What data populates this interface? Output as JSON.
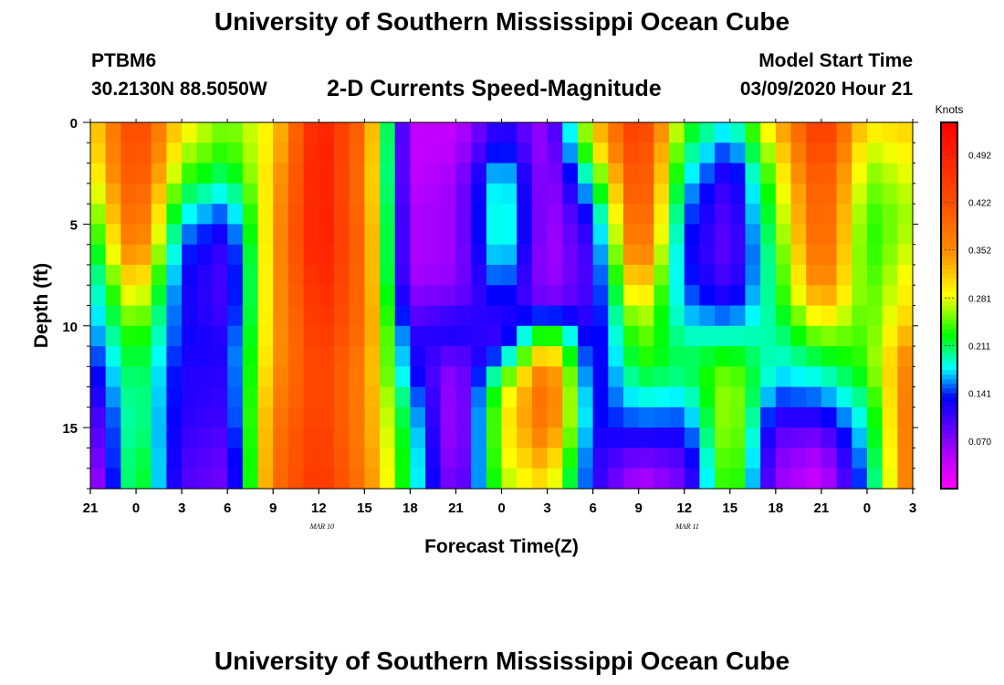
{
  "page": {
    "title": "University of Southern Mississippi Ocean Cube",
    "footer_title": "University of Southern Mississippi Ocean Cube",
    "station": "PTBM6",
    "coords": "30.2130N 88.5050W",
    "chart_title": "2-D Currents Speed-Magnitude",
    "model_start_label": "Model Start Time",
    "model_start_value": "03/09/2020 Hour 21"
  },
  "chart_data": {
    "type": "heatmap",
    "title": "2-D Currents Speed-Magnitude",
    "xlabel": "Forecast Time(Z)",
    "ylabel": "Depth (ft)",
    "x_range": [
      0,
      54
    ],
    "y_range": [
      0,
      18
    ],
    "x_unit_note": "hours since 03/09/2020 21Z",
    "x_ticks": [
      {
        "x": 0,
        "label": "21"
      },
      {
        "x": 3,
        "label": "0"
      },
      {
        "x": 6,
        "label": "3"
      },
      {
        "x": 9,
        "label": "6"
      },
      {
        "x": 12,
        "label": "9"
      },
      {
        "x": 15,
        "label": "12"
      },
      {
        "x": 18,
        "label": "15"
      },
      {
        "x": 21,
        "label": "18"
      },
      {
        "x": 24,
        "label": "21"
      },
      {
        "x": 27,
        "label": "0"
      },
      {
        "x": 30,
        "label": "3"
      },
      {
        "x": 33,
        "label": "6"
      },
      {
        "x": 36,
        "label": "9"
      },
      {
        "x": 39,
        "label": "12"
      },
      {
        "x": 42,
        "label": "15"
      },
      {
        "x": 45,
        "label": "18"
      },
      {
        "x": 48,
        "label": "21"
      },
      {
        "x": 51,
        "label": "0"
      },
      {
        "x": 54,
        "label": "3"
      }
    ],
    "date_labels": [
      {
        "x": 15.5,
        "label": "MAR  10"
      },
      {
        "x": 39.5,
        "label": "MAR  11"
      }
    ],
    "y_ticks": [
      {
        "y": 0,
        "label": "0"
      },
      {
        "y": 5,
        "label": "5"
      },
      {
        "y": 10,
        "label": "10"
      },
      {
        "y": 15,
        "label": "15"
      }
    ],
    "colorbar": {
      "title": "Knots",
      "range": [
        0.0,
        0.54
      ],
      "ticks": [
        {
          "v": 0.07,
          "label": "0.070"
        },
        {
          "v": 0.141,
          "label": "0.141"
        },
        {
          "v": 0.211,
          "label": "0.211"
        },
        {
          "v": 0.281,
          "label": "0.281"
        },
        {
          "v": 0.352,
          "label": "0.352"
        },
        {
          "v": 0.422,
          "label": "0.422"
        },
        {
          "v": 0.492,
          "label": "0.492"
        }
      ]
    },
    "depths": [
      0,
      1,
      2,
      3,
      4,
      5,
      6,
      7,
      8,
      9,
      10,
      11,
      12,
      13,
      14,
      15,
      16,
      17,
      18
    ],
    "time_hours": [
      0,
      3,
      6,
      9,
      12,
      15,
      18,
      21,
      24,
      27,
      30,
      33,
      36,
      39,
      42,
      45,
      48,
      51,
      54
    ],
    "speed_knots": [
      [
        0.3,
        0.45,
        0.3,
        0.25,
        0.3,
        0.5,
        0.38,
        0.04,
        0.04,
        0.12,
        0.06,
        0.3,
        0.47,
        0.24,
        0.18,
        0.32,
        0.47,
        0.3,
        0.32
      ],
      [
        0.29,
        0.44,
        0.28,
        0.24,
        0.3,
        0.51,
        0.38,
        0.04,
        0.04,
        0.14,
        0.05,
        0.3,
        0.46,
        0.22,
        0.15,
        0.3,
        0.46,
        0.28,
        0.3
      ],
      [
        0.28,
        0.44,
        0.26,
        0.22,
        0.31,
        0.51,
        0.37,
        0.04,
        0.05,
        0.17,
        0.05,
        0.24,
        0.45,
        0.2,
        0.12,
        0.28,
        0.44,
        0.26,
        0.29
      ],
      [
        0.26,
        0.43,
        0.23,
        0.19,
        0.32,
        0.51,
        0.37,
        0.04,
        0.06,
        0.2,
        0.05,
        0.2,
        0.45,
        0.18,
        0.1,
        0.26,
        0.43,
        0.25,
        0.28
      ],
      [
        0.24,
        0.42,
        0.2,
        0.16,
        0.32,
        0.51,
        0.37,
        0.05,
        0.06,
        0.2,
        0.05,
        0.16,
        0.44,
        0.16,
        0.09,
        0.25,
        0.42,
        0.24,
        0.27
      ],
      [
        0.22,
        0.41,
        0.17,
        0.13,
        0.33,
        0.51,
        0.38,
        0.05,
        0.06,
        0.21,
        0.05,
        0.13,
        0.43,
        0.15,
        0.09,
        0.24,
        0.42,
        0.23,
        0.27
      ],
      [
        0.2,
        0.39,
        0.15,
        0.11,
        0.33,
        0.51,
        0.38,
        0.05,
        0.06,
        0.2,
        0.05,
        0.12,
        0.41,
        0.14,
        0.08,
        0.23,
        0.41,
        0.23,
        0.28
      ],
      [
        0.18,
        0.36,
        0.14,
        0.1,
        0.33,
        0.5,
        0.38,
        0.05,
        0.06,
        0.18,
        0.05,
        0.11,
        0.38,
        0.14,
        0.09,
        0.22,
        0.39,
        0.23,
        0.29
      ],
      [
        0.17,
        0.32,
        0.13,
        0.1,
        0.33,
        0.49,
        0.38,
        0.06,
        0.07,
        0.16,
        0.06,
        0.11,
        0.34,
        0.15,
        0.1,
        0.22,
        0.37,
        0.24,
        0.3
      ],
      [
        0.16,
        0.29,
        0.13,
        0.1,
        0.33,
        0.48,
        0.38,
        0.08,
        0.09,
        0.13,
        0.08,
        0.11,
        0.3,
        0.16,
        0.13,
        0.21,
        0.33,
        0.24,
        0.31
      ],
      [
        0.15,
        0.26,
        0.13,
        0.11,
        0.33,
        0.47,
        0.38,
        0.1,
        0.13,
        0.11,
        0.21,
        0.11,
        0.27,
        0.18,
        0.17,
        0.2,
        0.28,
        0.24,
        0.33
      ],
      [
        0.14,
        0.24,
        0.13,
        0.12,
        0.33,
        0.46,
        0.37,
        0.13,
        0.11,
        0.11,
        0.3,
        0.11,
        0.25,
        0.2,
        0.21,
        0.19,
        0.24,
        0.24,
        0.36
      ],
      [
        0.12,
        0.23,
        0.12,
        0.12,
        0.34,
        0.45,
        0.36,
        0.13,
        0.06,
        0.2,
        0.38,
        0.11,
        0.23,
        0.21,
        0.25,
        0.18,
        0.2,
        0.24,
        0.38
      ],
      [
        0.11,
        0.22,
        0.12,
        0.11,
        0.35,
        0.45,
        0.36,
        0.16,
        0.05,
        0.25,
        0.4,
        0.12,
        0.2,
        0.19,
        0.27,
        0.16,
        0.17,
        0.22,
        0.39
      ],
      [
        0.09,
        0.22,
        0.12,
        0.11,
        0.36,
        0.45,
        0.36,
        0.18,
        0.04,
        0.28,
        0.4,
        0.13,
        0.17,
        0.16,
        0.28,
        0.13,
        0.14,
        0.2,
        0.4
      ],
      [
        0.07,
        0.22,
        0.11,
        0.1,
        0.37,
        0.46,
        0.36,
        0.19,
        0.04,
        0.28,
        0.39,
        0.13,
        0.14,
        0.14,
        0.28,
        0.1,
        0.1,
        0.19,
        0.4
      ],
      [
        0.06,
        0.23,
        0.11,
        0.09,
        0.37,
        0.46,
        0.36,
        0.2,
        0.04,
        0.28,
        0.36,
        0.12,
        0.1,
        0.11,
        0.28,
        0.08,
        0.06,
        0.18,
        0.4
      ],
      [
        0.04,
        0.24,
        0.1,
        0.08,
        0.38,
        0.46,
        0.37,
        0.2,
        0.05,
        0.27,
        0.33,
        0.12,
        0.06,
        0.09,
        0.27,
        0.07,
        0.04,
        0.17,
        0.4
      ],
      [
        0.03,
        0.24,
        0.1,
        0.08,
        0.38,
        0.47,
        0.37,
        0.2,
        0.06,
        0.26,
        0.3,
        0.12,
        0.04,
        0.08,
        0.27,
        0.06,
        0.03,
        0.16,
        0.4
      ]
    ]
  }
}
